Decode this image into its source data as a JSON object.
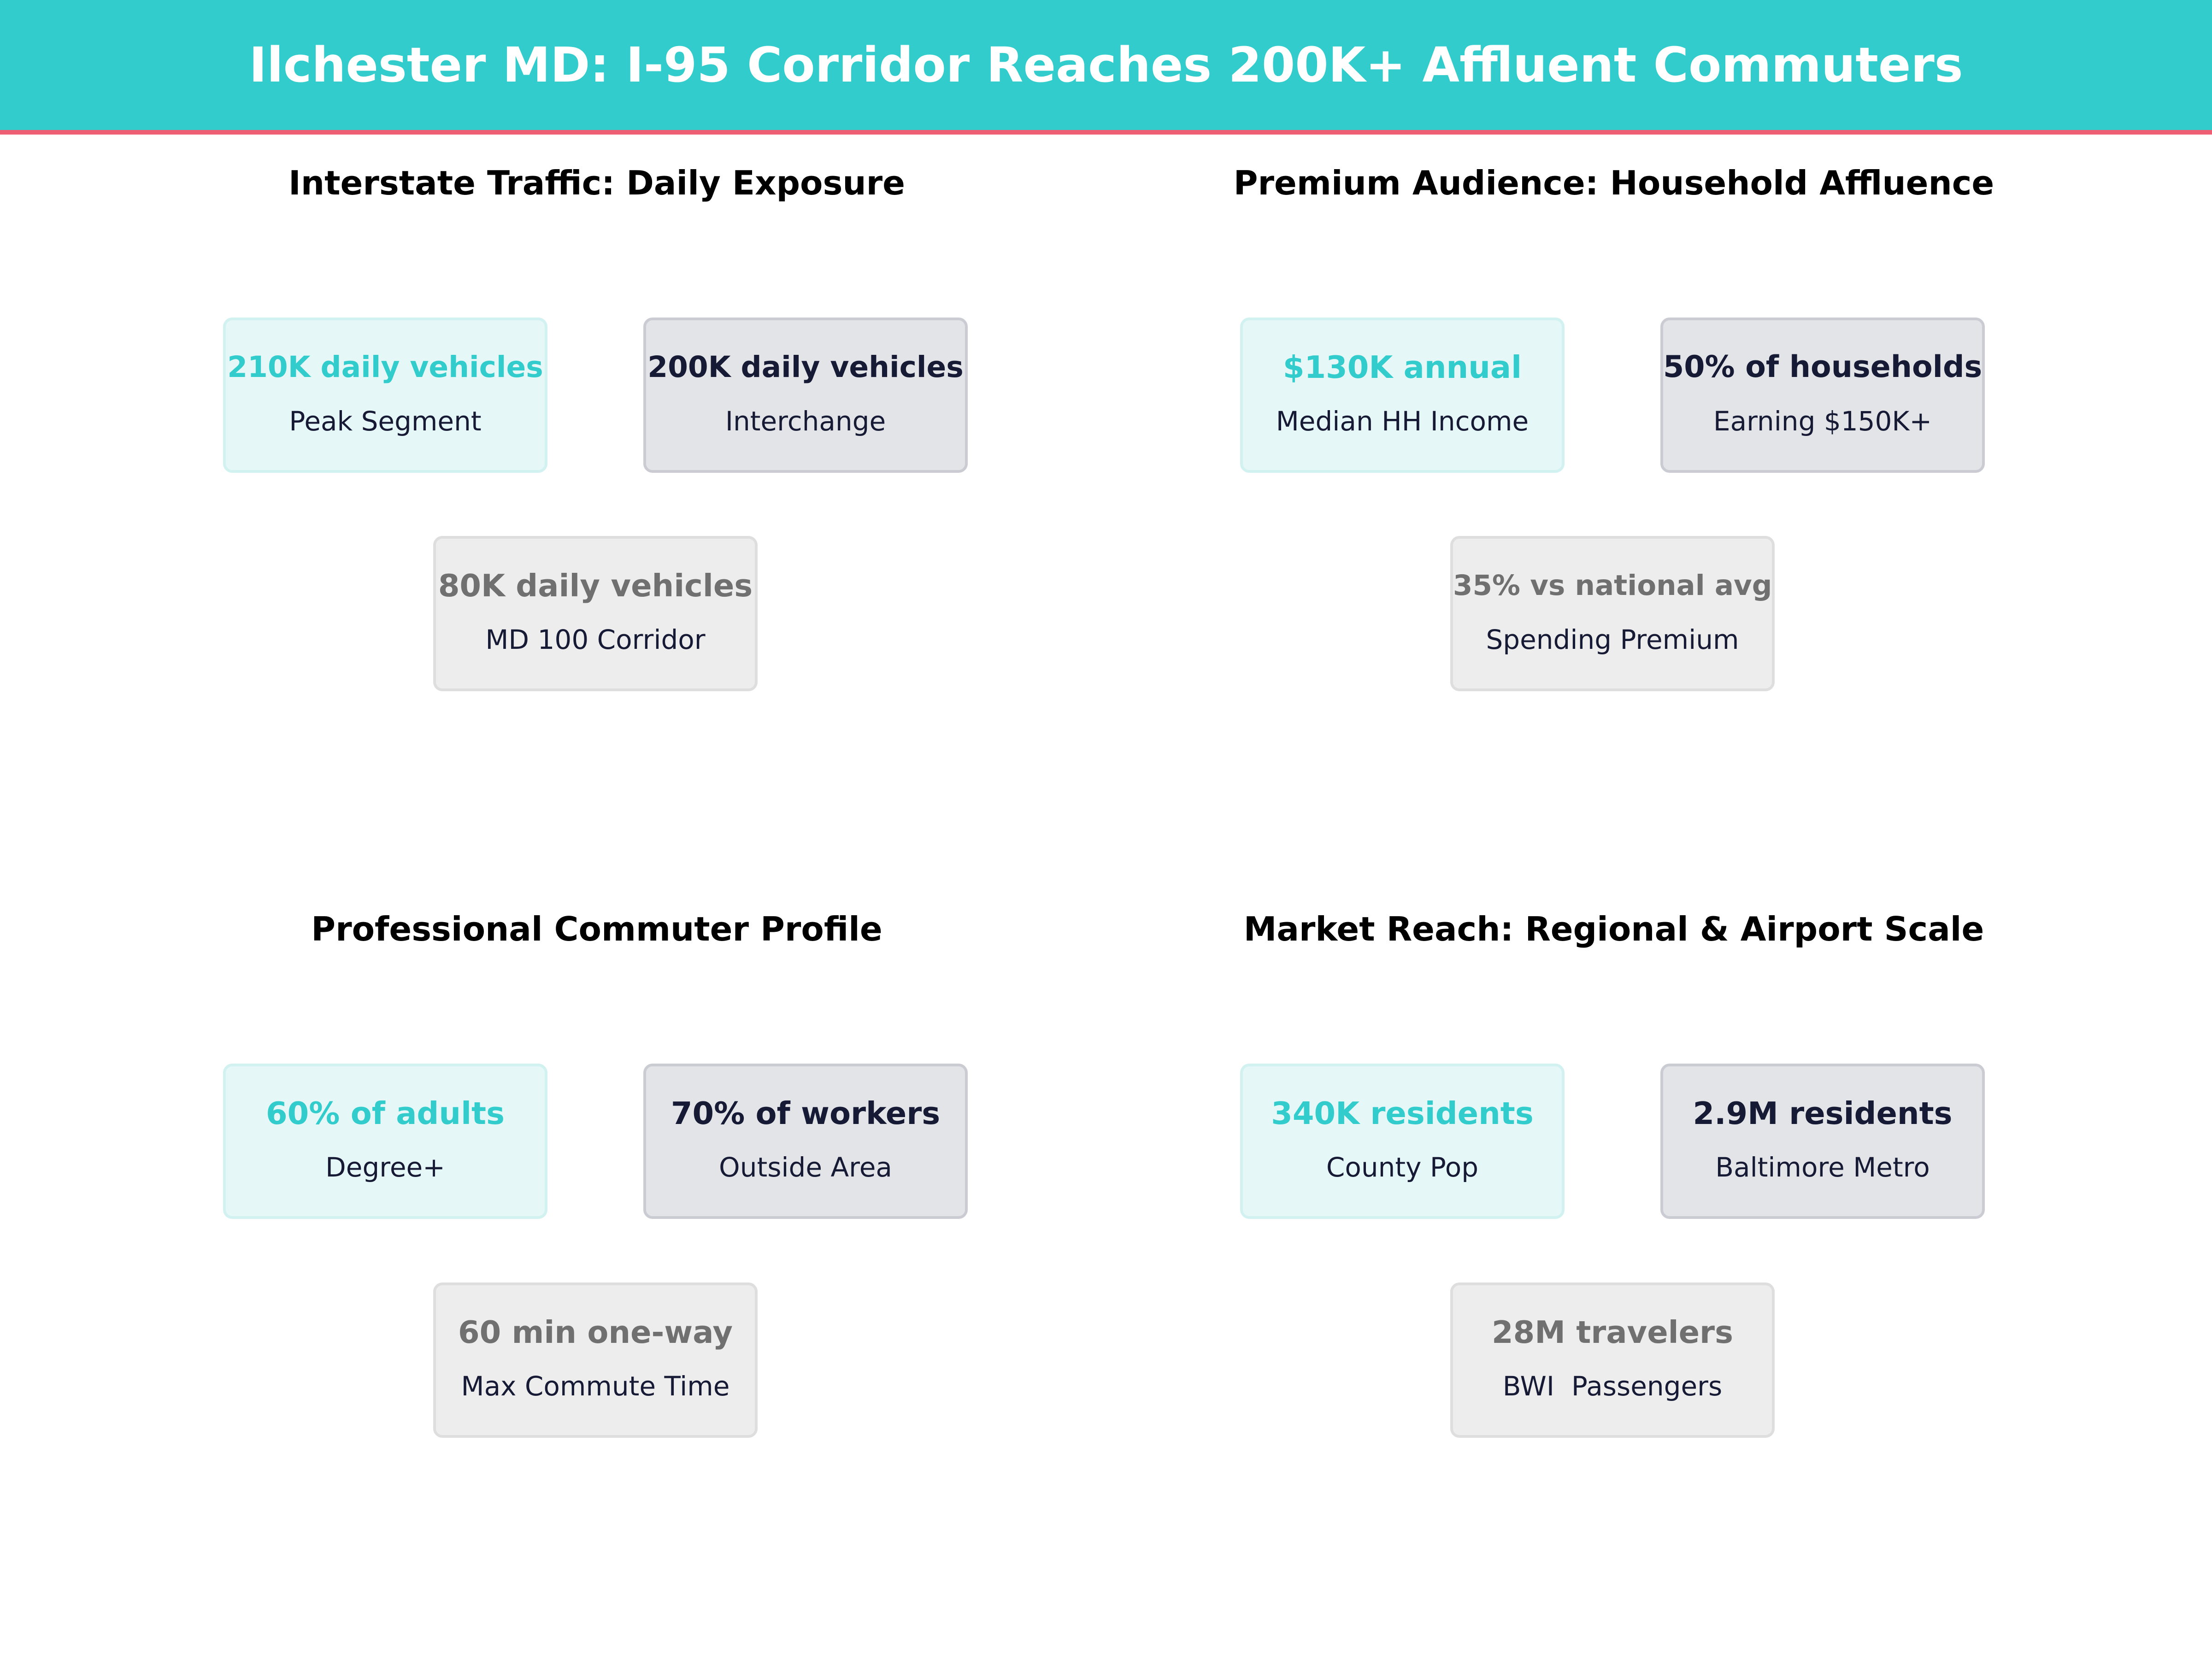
{
  "title": "Ilchester MD: I-95 Corridor Reaches 200K+ Affluent Commuters",
  "colors": {
    "accent": "#33CCCC",
    "header_rule": "#EE5F73",
    "dark": "#161A35",
    "muted": "#707070"
  },
  "sections": [
    {
      "title": "Interstate Traffic: Daily Exposure",
      "cards": [
        {
          "value": "210K daily vehicles",
          "label": "Peak Segment"
        },
        {
          "value": "200K daily vehicles",
          "label": "Interchange"
        },
        {
          "value": "80K daily vehicles",
          "label": "MD 100 Corridor"
        }
      ]
    },
    {
      "title": "Premium Audience: Household Affluence",
      "cards": [
        {
          "value": "$130K annual",
          "label": "Median HH Income"
        },
        {
          "value": "50% of households",
          "label": "Earning $150K+"
        },
        {
          "value": "35% vs national avg",
          "label": "Spending Premium"
        }
      ]
    },
    {
      "title": "Professional Commuter Profile",
      "cards": [
        {
          "value": "60% of adults",
          "label": "Degree+"
        },
        {
          "value": "70% of workers",
          "label": "Outside Area"
        },
        {
          "value": "60 min one-way",
          "label": "Max Commute Time"
        }
      ]
    },
    {
      "title": "Market Reach: Regional & Airport Scale",
      "cards": [
        {
          "value": "340K residents",
          "label": "County Pop"
        },
        {
          "value": "2.9M residents",
          "label": "Baltimore Metro"
        },
        {
          "value": "28M travelers",
          "label": "BWI  Passengers"
        }
      ]
    }
  ]
}
